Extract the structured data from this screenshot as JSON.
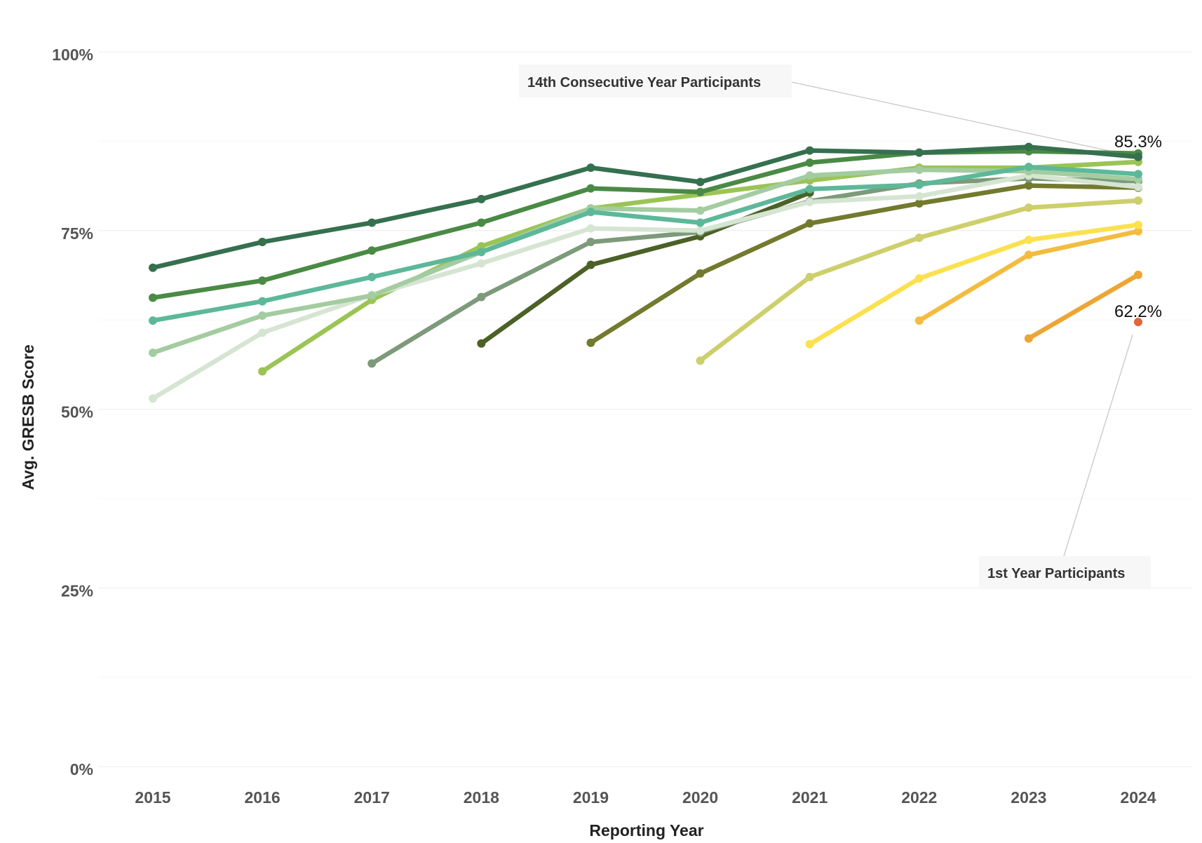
{
  "chart_data": {
    "type": "line",
    "title": "",
    "xlabel": "Reporting Year",
    "ylabel": "Avg. GRESB Score",
    "x": [
      2015,
      2016,
      2017,
      2018,
      2019,
      2020,
      2021,
      2022,
      2023,
      2024
    ],
    "x_tick_labels": [
      "2015",
      "2016",
      "2017",
      "2018",
      "2019",
      "2020",
      "2021",
      "2022",
      "2023",
      "2024"
    ],
    "ylim": [
      0,
      100
    ],
    "y_ticks": [
      0,
      25,
      50,
      75,
      100
    ],
    "y_tick_labels": [
      "0%",
      "25%",
      "50%",
      "75%",
      "100%"
    ],
    "grid": "horizontal",
    "legend": "none",
    "series": [
      {
        "color": "#35704F",
        "values": [
          69.8,
          73.4,
          76.1,
          79.4,
          83.8,
          81.8,
          86.2,
          85.9,
          86.7,
          85.3
        ]
      },
      {
        "color": "#4A8A45",
        "values": [
          65.6,
          68.0,
          72.2,
          76.1,
          80.9,
          80.4,
          84.5,
          85.9,
          86.1,
          85.8
        ]
      },
      {
        "color": "#5DB89A",
        "values": [
          62.4,
          65.1,
          68.5,
          72.0,
          77.6,
          76.1,
          80.8,
          81.4,
          83.9,
          82.9
        ]
      },
      {
        "color": "#A3CCA0",
        "values": [
          57.9,
          63.1,
          65.9,
          null,
          78.1,
          77.8,
          82.7,
          83.5,
          83.3,
          82.2
        ]
      },
      {
        "color": "#D5E5D2",
        "values": [
          51.5,
          60.7,
          66.0,
          70.4,
          75.3,
          75.0,
          79.0,
          79.8,
          82.7,
          81.1
        ]
      },
      {
        "color": "#9BC455",
        "values": [
          null,
          55.3,
          65.3,
          72.8,
          78.1,
          null,
          82.0,
          83.8,
          83.8,
          84.6
        ]
      },
      {
        "color": "#7D9A7A",
        "values": [
          null,
          null,
          56.4,
          65.7,
          73.4,
          74.8,
          79.1,
          81.6,
          82.3,
          81.9
        ]
      },
      {
        "color": "#4B6126",
        "values": [
          null,
          null,
          null,
          59.2,
          70.2,
          74.2,
          80.3,
          null,
          null,
          null
        ]
      },
      {
        "color": "#737A2E",
        "values": [
          null,
          null,
          null,
          null,
          59.3,
          69.0,
          76.0,
          78.8,
          81.3,
          81.0
        ]
      },
      {
        "color": "#CDCF6C",
        "values": [
          null,
          null,
          null,
          null,
          null,
          56.8,
          68.5,
          74.0,
          78.2,
          79.2
        ]
      },
      {
        "color": "#FBE14F",
        "values": [
          null,
          null,
          null,
          null,
          null,
          null,
          59.1,
          68.3,
          73.7,
          75.8
        ]
      },
      {
        "color": "#F3BC3E",
        "values": [
          null,
          null,
          null,
          null,
          null,
          null,
          null,
          62.4,
          71.6,
          74.9
        ]
      },
      {
        "color": "#EDA534",
        "values": [
          null,
          null,
          null,
          null,
          null,
          null,
          null,
          null,
          59.9,
          68.8
        ]
      },
      {
        "color": "#E0663A",
        "values": [
          null,
          null,
          null,
          null,
          null,
          null,
          null,
          null,
          null,
          62.2
        ]
      }
    ],
    "annotations": [
      {
        "text": "14th Consecutive Year Participants",
        "target_x": 2024,
        "target_y": 85.3
      },
      {
        "text": "1st Year Participants",
        "target_x": 2024,
        "target_y": 62.2
      }
    ],
    "end_labels": [
      {
        "text": "85.3%",
        "x": 2024,
        "y": 85.3
      },
      {
        "text": "62.2%",
        "x": 2024,
        "y": 62.2
      }
    ]
  }
}
